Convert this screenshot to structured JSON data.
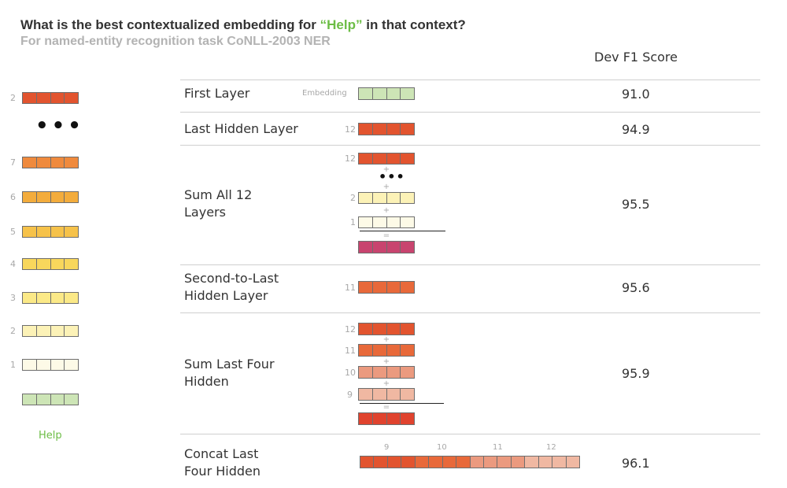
{
  "title": {
    "prefix": "What is the best contextualized embedding for ",
    "open_quote": "“",
    "highlight": "Help",
    "close_quote": "”",
    "suffix": " in that context?"
  },
  "subtitle": "For named-entity recognition task CoNLL-2003 NER",
  "score_header": "Dev F1 Score",
  "colors": {
    "layer12": "#e2542f",
    "layer11": "#e8693a",
    "layer10": "#eb9a7f",
    "layer9": "#f0b8a2",
    "layer7": "#ef8a3d",
    "layer6": "#f3ac3c",
    "layer5": "#f6c24a",
    "layer4": "#f8d75c",
    "layer3": "#fbe987",
    "layer2": "#fcf2b7",
    "layer1": "#fdfae7",
    "embedding": "#cde5b6",
    "sum_all": "#c8446f",
    "sum_four": "#e0432e",
    "accent_green": "#6cbd45"
  },
  "left_stack": {
    "top_label": "2",
    "ellipsis": "•••",
    "labels": [
      "7",
      "6",
      "5",
      "4",
      "3",
      "2",
      "1"
    ],
    "word": "Help"
  },
  "rows": [
    {
      "label": "First Layer",
      "score": "91.0",
      "vector_label": "Embedding"
    },
    {
      "label": "Last Hidden Layer",
      "score": "94.9",
      "vector_label": "12"
    },
    {
      "label": "Sum All 12\nLayers",
      "score": "95.5",
      "vector_labels": [
        "12",
        "2",
        "1"
      ],
      "plus": "+",
      "ellipsis": "•••",
      "equals": "="
    },
    {
      "label": "Second-to-Last\nHidden Layer",
      "score": "95.6",
      "vector_label": "11"
    },
    {
      "label": "Sum Last Four\nHidden",
      "score": "95.9",
      "vector_labels": [
        "12",
        "11",
        "10",
        "9"
      ],
      "plus": "+",
      "equals": "="
    },
    {
      "label": "Concat Last\nFour Hidden",
      "score": "96.1",
      "segment_labels": [
        "9",
        "10",
        "11",
        "12"
      ]
    }
  ]
}
